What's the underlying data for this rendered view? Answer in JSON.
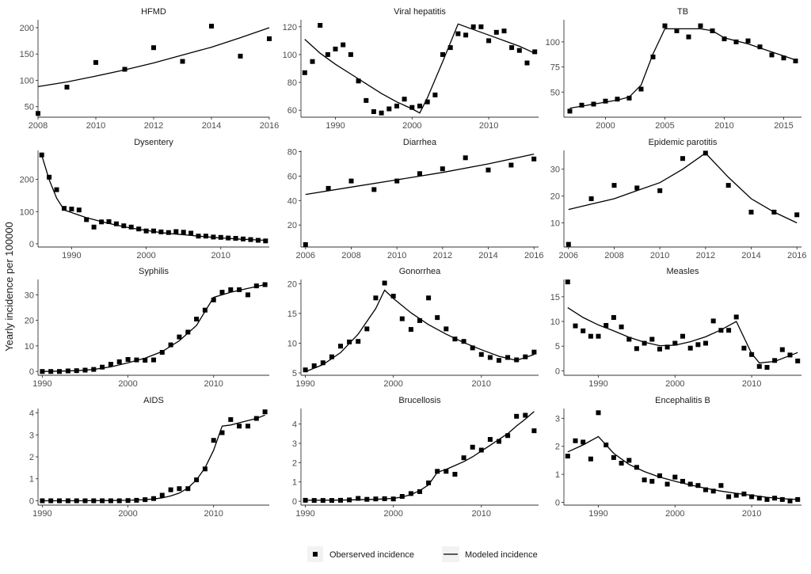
{
  "y_axis_label": "Yearly incidence per 100000",
  "legend": {
    "observed": "Oberserved incidence",
    "modeled": "Modeled incidence"
  },
  "chart_data": [
    {
      "type": "scatter+line",
      "title": "HFMD",
      "xlim": [
        2008,
        2016
      ],
      "ylim": [
        30,
        215
      ],
      "xticks": [
        2008,
        2010,
        2012,
        2014,
        2016
      ],
      "yticks": [
        50,
        100,
        150,
        200
      ],
      "x": [
        2008,
        2009,
        2010,
        2011,
        2012,
        2013,
        2014,
        2015,
        2016
      ],
      "observed": [
        37,
        87,
        134,
        121,
        162,
        136,
        203,
        146,
        179
      ],
      "model_x": [
        2008,
        2009,
        2010,
        2011,
        2012,
        2013,
        2014,
        2015,
        2016
      ],
      "modeled": [
        88,
        97,
        108,
        120,
        133,
        148,
        163,
        181,
        200
      ]
    },
    {
      "type": "scatter+line",
      "title": "Viral hepatitis",
      "xlim": [
        1985.5,
        2016.5
      ],
      "ylim": [
        55,
        125
      ],
      "xticks": [
        1990,
        2000,
        2010
      ],
      "yticks": [
        60,
        80,
        100,
        120
      ],
      "x": [
        1986,
        1987,
        1988,
        1989,
        1990,
        1991,
        1992,
        1993,
        1994,
        1995,
        1996,
        1997,
        1998,
        1999,
        2000,
        2001,
        2002,
        2003,
        2004,
        2005,
        2006,
        2007,
        2008,
        2009,
        2010,
        2011,
        2012,
        2013,
        2014,
        2015,
        2016
      ],
      "observed": [
        87,
        95,
        121,
        100,
        104,
        107,
        100,
        81,
        67,
        59,
        58,
        61,
        63,
        68,
        62,
        63,
        66,
        71,
        100,
        105,
        115,
        114,
        120,
        120,
        110,
        116,
        117,
        105,
        103,
        94,
        102
      ],
      "model_x": [
        1986,
        1988,
        1990,
        1992,
        1994,
        1996,
        1998,
        2000,
        2001,
        2002,
        2004,
        2006,
        2008,
        2010,
        2012,
        2014,
        2016
      ],
      "modeled": [
        111,
        101,
        93,
        86,
        79,
        72,
        66,
        61,
        58,
        69,
        95,
        122,
        118,
        114,
        110,
        106,
        101
      ]
    },
    {
      "type": "scatter+line",
      "title": "TB",
      "xlim": [
        1996.5,
        2016.5
      ],
      "ylim": [
        25,
        122
      ],
      "xticks": [
        2000,
        2005,
        2010,
        2015
      ],
      "yticks": [
        50,
        75,
        100
      ],
      "x": [
        1997,
        1998,
        1999,
        2000,
        2001,
        2002,
        2003,
        2004,
        2005,
        2006,
        2007,
        2008,
        2009,
        2010,
        2011,
        2012,
        2013,
        2014,
        2015,
        2016
      ],
      "observed": [
        31,
        37,
        38,
        41,
        43,
        44,
        53,
        85,
        116,
        111,
        105,
        116,
        111,
        103,
        100,
        101,
        95,
        87,
        84,
        81
      ],
      "model_x": [
        1997,
        1998,
        1999,
        2000,
        2001,
        2002,
        2003,
        2004,
        2005,
        2006,
        2007,
        2008,
        2009,
        2010,
        2011,
        2012,
        2013,
        2014,
        2015,
        2016
      ],
      "modeled": [
        34,
        36,
        38,
        40,
        42,
        45,
        57,
        88,
        113,
        113,
        113,
        113,
        111,
        104,
        101,
        98,
        94,
        90,
        86,
        82
      ]
    },
    {
      "type": "scatter+line",
      "title": "Dysentery",
      "xlim": [
        1985.5,
        2016.5
      ],
      "ylim": [
        -10,
        290
      ],
      "xticks": [
        1990,
        2000,
        2010
      ],
      "yticks": [
        0,
        100,
        200
      ],
      "x": [
        1986,
        1987,
        1988,
        1989,
        1990,
        1991,
        1992,
        1993,
        1994,
        1995,
        1996,
        1997,
        1998,
        1999,
        2000,
        2001,
        2002,
        2003,
        2004,
        2005,
        2006,
        2007,
        2008,
        2009,
        2010,
        2011,
        2012,
        2013,
        2014,
        2015,
        2016
      ],
      "observed": [
        276,
        207,
        168,
        110,
        108,
        105,
        75,
        52,
        68,
        69,
        62,
        56,
        52,
        46,
        40,
        40,
        37,
        35,
        38,
        36,
        33,
        24,
        24,
        21,
        20,
        18,
        17,
        15,
        13,
        11,
        9
      ],
      "model_x": [
        1986,
        1987,
        1988,
        1989,
        1990,
        1991,
        1992,
        1993,
        1994,
        1995,
        1996,
        1997,
        1998,
        1999,
        2000,
        2001,
        2002,
        2003,
        2004,
        2005,
        2006,
        2007,
        2008,
        2009,
        2010,
        2011,
        2012,
        2013,
        2014,
        2015,
        2016
      ],
      "modeled": [
        275,
        199,
        142,
        105,
        97,
        89,
        81,
        75,
        69,
        63,
        58,
        53,
        49,
        45,
        42,
        38,
        35,
        32,
        30,
        28,
        26,
        24,
        22,
        20,
        18,
        17,
        15,
        14,
        13,
        12,
        11
      ]
    },
    {
      "type": "scatter+line",
      "title": "Diarrhea",
      "xlim": [
        2005.8,
        2016.2
      ],
      "ylim": [
        2,
        81
      ],
      "xticks": [
        2006,
        2008,
        2010,
        2012,
        2014,
        2016
      ],
      "yticks": [
        20,
        40,
        60,
        80
      ],
      "x": [
        2006,
        2007,
        2008,
        2009,
        2010,
        2011,
        2012,
        2013,
        2014,
        2015,
        2016
      ],
      "observed": [
        4,
        50,
        56,
        49,
        56,
        62,
        66,
        75,
        65,
        69,
        74
      ],
      "model_x": [
        2006,
        2008,
        2010,
        2012,
        2014,
        2016
      ],
      "modeled": [
        45,
        51,
        57,
        63,
        70,
        78
      ]
    },
    {
      "type": "scatter+line",
      "title": "Epidemic parotitis",
      "xlim": [
        2005.8,
        2016.2
      ],
      "ylim": [
        1,
        37
      ],
      "xticks": [
        2006,
        2008,
        2010,
        2012,
        2014,
        2016
      ],
      "yticks": [
        10,
        20,
        30
      ],
      "x": [
        2006,
        2007,
        2008,
        2009,
        2010,
        2011,
        2012,
        2013,
        2014,
        2015,
        2016
      ],
      "observed": [
        2,
        19,
        24,
        23,
        22,
        34,
        36,
        24,
        14,
        14,
        13
      ],
      "model_x": [
        2006,
        2007,
        2008,
        2009,
        2010,
        2011,
        2012,
        2013,
        2014,
        2015,
        2016
      ],
      "modeled": [
        15,
        17,
        19,
        22,
        25,
        30,
        36,
        27,
        19,
        14,
        10
      ]
    },
    {
      "type": "scatter+line",
      "title": "Syphilis",
      "xlim": [
        1989.5,
        2016.5
      ],
      "ylim": [
        -1.5,
        36
      ],
      "xticks": [
        1990,
        2000,
        2010
      ],
      "yticks": [
        0,
        10,
        20,
        30
      ],
      "x": [
        1990,
        1991,
        1992,
        1993,
        1994,
        1995,
        1996,
        1997,
        1998,
        1999,
        2000,
        2001,
        2002,
        2003,
        2004,
        2005,
        2006,
        2007,
        2008,
        2009,
        2010,
        2011,
        2012,
        2013,
        2014,
        2015,
        2016
      ],
      "observed": [
        0,
        0,
        0,
        0.2,
        0.3,
        0.5,
        0.8,
        1.7,
        2.8,
        3.8,
        4.7,
        4.5,
        4.4,
        4.5,
        7.5,
        10.4,
        13.5,
        15.4,
        20.5,
        24,
        28,
        31,
        32,
        32,
        30,
        33.5,
        34
      ],
      "model_x": [
        1990,
        1992,
        1994,
        1996,
        1998,
        2000,
        2002,
        2004,
        2006,
        2008,
        2010,
        2012,
        2014,
        2016
      ],
      "modeled": [
        0,
        0.1,
        0.3,
        0.8,
        1.8,
        3.4,
        5.2,
        7.8,
        12,
        18,
        29,
        31,
        32.5,
        34
      ]
    },
    {
      "type": "scatter+line",
      "title": "Gonorrhea",
      "xlim": [
        1989.5,
        2016.5
      ],
      "ylim": [
        4.6,
        20.7
      ],
      "xticks": [
        1990,
        2000,
        2010
      ],
      "yticks": [
        5,
        10,
        15,
        20
      ],
      "x": [
        1990,
        1991,
        1992,
        1993,
        1994,
        1995,
        1996,
        1997,
        1998,
        1999,
        2000,
        2001,
        2002,
        2003,
        2004,
        2005,
        2006,
        2007,
        2008,
        2009,
        2010,
        2011,
        2012,
        2013,
        2014,
        2015,
        2016
      ],
      "observed": [
        5.5,
        6.2,
        6.7,
        7.7,
        9.5,
        10.2,
        10.3,
        12.4,
        17.6,
        20.1,
        17.9,
        14.1,
        12.3,
        13.8,
        17.6,
        14.3,
        12.4,
        10.7,
        10.3,
        9.2,
        8.1,
        7.6,
        7.1,
        7.6,
        7.2,
        7.7,
        8.5
      ],
      "model_x": [
        1990,
        1992,
        1994,
        1996,
        1998,
        1999,
        2000,
        2002,
        2004,
        2006,
        2008,
        2010,
        2012,
        2014,
        2016
      ],
      "modeled": [
        5.2,
        6.4,
        8.4,
        11.5,
        15.8,
        18.9,
        17.5,
        15.1,
        13.1,
        11.5,
        10.1,
        8.9,
        7.8,
        7.1,
        8.1
      ]
    },
    {
      "type": "scatter+line",
      "title": "Measles",
      "xlim": [
        1985.5,
        2016.5
      ],
      "ylim": [
        -0.9,
        18.5
      ],
      "xticks": [
        1990,
        2000,
        2010
      ],
      "yticks": [
        0,
        5,
        10,
        15
      ],
      "x": [
        1986,
        1987,
        1988,
        1989,
        1990,
        1991,
        1992,
        1993,
        1994,
        1995,
        1996,
        1997,
        1998,
        1999,
        2000,
        2001,
        2002,
        2003,
        2004,
        2005,
        2006,
        2007,
        2008,
        2009,
        2010,
        2011,
        2012,
        2013,
        2014,
        2015,
        2016
      ],
      "observed": [
        18,
        9.1,
        8.1,
        7,
        7,
        9.2,
        10.8,
        8.9,
        6.4,
        4.5,
        5.6,
        6.4,
        4.4,
        4.8,
        5.6,
        7,
        4.6,
        5.3,
        5.6,
        10.1,
        8.2,
        8.2,
        10.9,
        4.6,
        3.3,
        0.9,
        0.7,
        2.1,
        4.3,
        3.2,
        2
      ],
      "model_x": [
        1986,
        1988,
        1990,
        1992,
        1994,
        1996,
        1998,
        2000,
        2002,
        2004,
        2006,
        2008,
        2010,
        2011,
        2013,
        2016
      ],
      "modeled": [
        12.8,
        10.8,
        9.3,
        8.1,
        6.8,
        5.8,
        5.1,
        5.2,
        5.9,
        6.9,
        8.3,
        10,
        3.5,
        1.6,
        1.9,
        3.7
      ]
    },
    {
      "type": "scatter+line",
      "title": "AIDS",
      "xlim": [
        1989.5,
        2016.5
      ],
      "ylim": [
        -0.2,
        4.2
      ],
      "xticks": [
        1990,
        2000,
        2010
      ],
      "yticks": [
        0,
        1,
        2,
        3,
        4
      ],
      "x": [
        1990,
        1991,
        1992,
        1993,
        1994,
        1995,
        1996,
        1997,
        1998,
        1999,
        2000,
        2001,
        2002,
        2003,
        2004,
        2005,
        2006,
        2007,
        2008,
        2009,
        2010,
        2011,
        2012,
        2013,
        2014,
        2015,
        2016
      ],
      "observed": [
        0,
        0,
        0,
        0,
        0,
        0,
        0,
        0,
        0,
        0,
        0.01,
        0.02,
        0.05,
        0.1,
        0.25,
        0.5,
        0.55,
        0.55,
        0.95,
        1.45,
        2.75,
        3.1,
        3.7,
        3.4,
        3.4,
        3.75,
        4.05
      ],
      "model_x": [
        1990,
        1994,
        1998,
        2000,
        2002,
        2003,
        2004,
        2005,
        2006,
        2007,
        2008,
        2009,
        2010,
        2011,
        2012,
        2013,
        2014,
        2015,
        2016
      ],
      "modeled": [
        0,
        0,
        0.01,
        0.02,
        0.05,
        0.08,
        0.13,
        0.22,
        0.35,
        0.58,
        0.95,
        1.5,
        2.3,
        3.4,
        3.45,
        3.55,
        3.65,
        3.75,
        3.9
      ]
    },
    {
      "type": "scatter+line",
      "title": "Brucellosis",
      "xlim": [
        1989.5,
        2016.5
      ],
      "ylim": [
        -0.2,
        4.8
      ],
      "xticks": [
        1990,
        2000,
        2010
      ],
      "yticks": [
        0,
        1,
        2,
        3,
        4
      ],
      "x": [
        1990,
        1991,
        1992,
        1993,
        1994,
        1995,
        1996,
        1997,
        1998,
        1999,
        2000,
        2001,
        2002,
        2003,
        2004,
        2005,
        2006,
        2007,
        2008,
        2009,
        2010,
        2011,
        2012,
        2013,
        2014,
        2015,
        2016
      ],
      "observed": [
        0.05,
        0.04,
        0.04,
        0.04,
        0.05,
        0.07,
        0.15,
        0.1,
        0.12,
        0.13,
        0.12,
        0.25,
        0.4,
        0.5,
        0.95,
        1.55,
        1.55,
        1.4,
        2.25,
        2.8,
        2.65,
        3.2,
        3.1,
        3.4,
        4.4,
        4.45,
        3.65
      ],
      "model_x": [
        1990,
        1994,
        1998,
        2000,
        2001,
        2002,
        2003,
        2004,
        2005,
        2006,
        2007,
        2008,
        2009,
        2010,
        2011,
        2012,
        2013,
        2014,
        2015,
        2016
      ],
      "modeled": [
        0.05,
        0.06,
        0.1,
        0.15,
        0.22,
        0.35,
        0.55,
        0.85,
        1.5,
        1.65,
        1.85,
        2.05,
        2.3,
        2.6,
        2.9,
        3.2,
        3.5,
        3.9,
        4.25,
        4.65
      ]
    },
    {
      "type": "scatter+line",
      "title": "Encephalitis B",
      "xlim": [
        1985.5,
        2016.5
      ],
      "ylim": [
        -0.1,
        3.35
      ],
      "xticks": [
        1990,
        2000,
        2010
      ],
      "yticks": [
        0,
        1,
        2,
        3
      ],
      "x": [
        1986,
        1987,
        1988,
        1989,
        1990,
        1991,
        1992,
        1993,
        1994,
        1995,
        1996,
        1997,
        1998,
        1999,
        2000,
        2001,
        2002,
        2003,
        2004,
        2005,
        2006,
        2007,
        2008,
        2009,
        2010,
        2011,
        2012,
        2013,
        2014,
        2015,
        2016
      ],
      "observed": [
        1.65,
        2.2,
        2.15,
        1.55,
        3.2,
        2.05,
        1.6,
        1.4,
        1.5,
        1.25,
        0.8,
        0.75,
        0.95,
        0.65,
        0.9,
        0.75,
        0.65,
        0.6,
        0.45,
        0.4,
        0.6,
        0.2,
        0.25,
        0.3,
        0.2,
        0.15,
        0.1,
        0.15,
        0.1,
        0.05,
        0.1
      ],
      "model_x": [
        1986,
        1988,
        1990,
        1992,
        1994,
        1996,
        1998,
        2000,
        2002,
        2004,
        2006,
        2008,
        2010,
        2012,
        2014,
        2016
      ],
      "modeled": [
        1.8,
        2.05,
        2.35,
        1.75,
        1.35,
        1.1,
        0.9,
        0.75,
        0.62,
        0.5,
        0.4,
        0.32,
        0.25,
        0.18,
        0.13,
        0.1
      ]
    }
  ]
}
